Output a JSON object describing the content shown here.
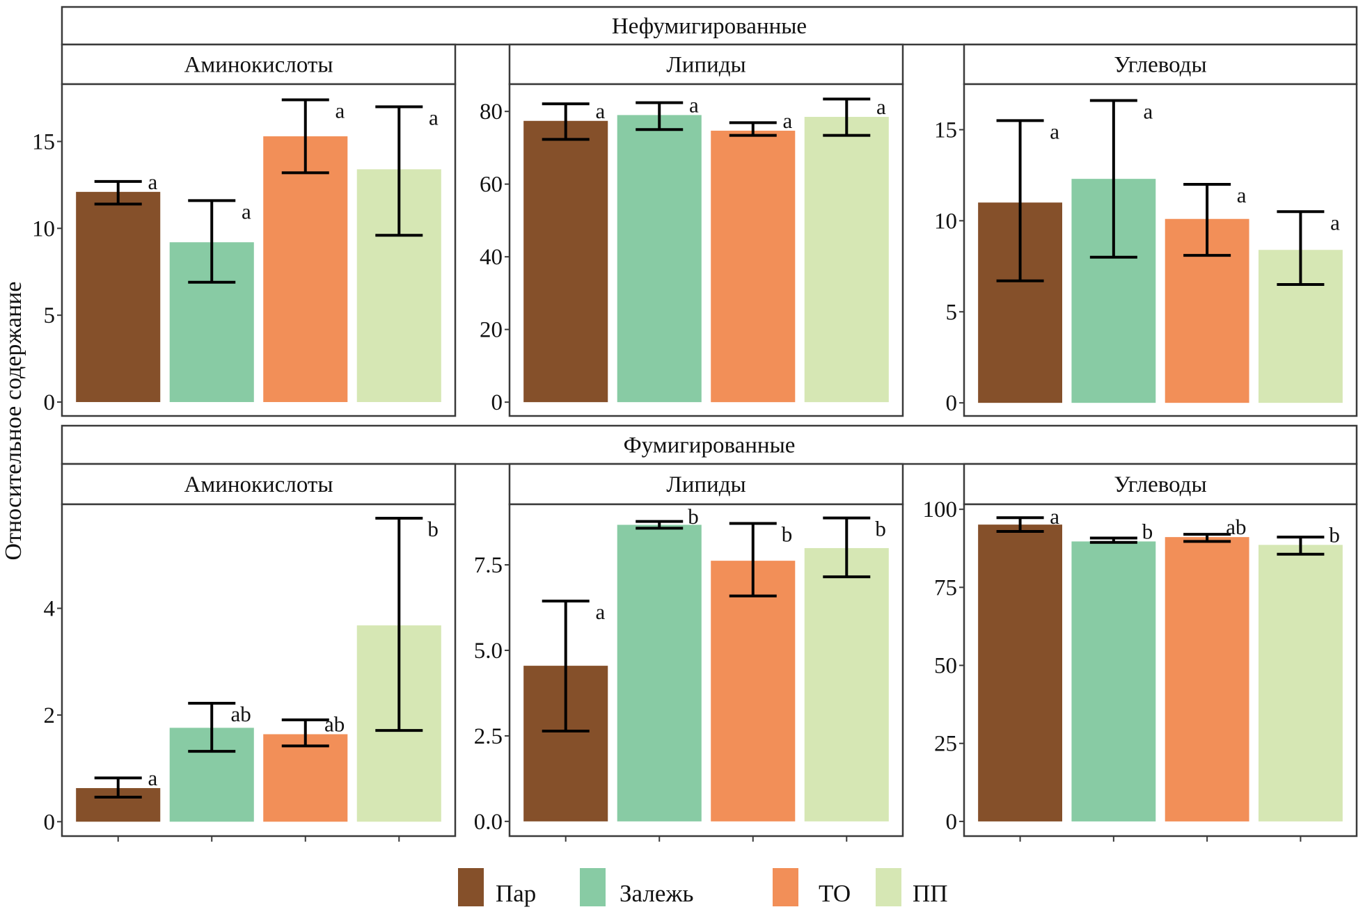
{
  "chart_data": {
    "type": "bar",
    "ylabel": "Относительное содержание",
    "xlabel": "",
    "categories": [
      "Пар",
      "Залежь",
      "ТО",
      "ПП"
    ],
    "legend": {
      "position": "bottom",
      "entries": [
        {
          "label": "Пар",
          "color": "#85502A"
        },
        {
          "label": "Залежь",
          "color": "#88CBA4"
        },
        {
          "label": "ТО",
          "color": "#F28F58"
        },
        {
          "label": "ПП",
          "color": "#D6E7B4"
        }
      ]
    },
    "rows": [
      {
        "title": "Нефумигированные",
        "panels": [
          {
            "title": "Аминокислоты",
            "ylim": [
              -0.8,
              18.3
            ],
            "yticks": [
              0,
              5,
              10,
              15
            ],
            "ytick_labels": [
              "0",
              "5",
              "10",
              "15"
            ],
            "values": [
              12.1,
              9.2,
              15.3,
              13.4
            ],
            "err_low": [
              11.4,
              6.9,
              13.2,
              9.6
            ],
            "err_high": [
              12.7,
              11.6,
              17.4,
              17.0
            ],
            "letters": [
              "a",
              "a",
              "a",
              "a"
            ]
          },
          {
            "title": "Липиды",
            "ylim": [
              -3.8,
              87.5
            ],
            "yticks": [
              0,
              20,
              40,
              60,
              80
            ],
            "ytick_labels": [
              "0",
              "20",
              "40",
              "60",
              "80"
            ],
            "values": [
              77.4,
              79.0,
              74.7,
              78.5
            ],
            "err_low": [
              72.3,
              75.0,
              73.4,
              73.4
            ],
            "err_high": [
              82.1,
              82.4,
              76.9,
              83.4
            ],
            "letters": [
              "a",
              "a",
              "a",
              "a"
            ]
          },
          {
            "title": "Углеводы",
            "ylim": [
              -0.72,
              17.5
            ],
            "yticks": [
              0,
              5,
              10,
              15
            ],
            "ytick_labels": [
              "0",
              "5",
              "10",
              "15"
            ],
            "values": [
              11.0,
              12.3,
              10.1,
              8.4
            ],
            "err_low": [
              6.7,
              8.0,
              8.1,
              6.5
            ],
            "err_high": [
              15.5,
              16.6,
              12.0,
              10.5
            ],
            "letters": [
              "a",
              "a",
              "a",
              "a"
            ]
          }
        ]
      },
      {
        "title": "Фумигированные",
        "panels": [
          {
            "title": "Аминокислоты",
            "ylim": [
              -0.27,
              5.95
            ],
            "yticks": [
              0,
              2,
              4
            ],
            "ytick_labels": [
              "0",
              "2",
              "4"
            ],
            "values": [
              0.63,
              1.76,
              1.64,
              3.68
            ],
            "err_low": [
              0.46,
              1.32,
              1.42,
              1.71
            ],
            "err_high": [
              0.82,
              2.22,
              1.91,
              5.69
            ],
            "letters": [
              "a",
              "ab",
              "ab",
              "b"
            ]
          },
          {
            "title": "Липиды",
            "ylim": [
              -0.43,
              9.27
            ],
            "yticks": [
              0,
              2.5,
              5,
              7.5
            ],
            "ytick_labels": [
              "0.0",
              "2.5",
              "5.0",
              "7.5"
            ],
            "values": [
              4.55,
              8.67,
              7.62,
              7.99
            ],
            "err_low": [
              2.64,
              8.57,
              6.59,
              7.15
            ],
            "err_high": [
              6.44,
              8.77,
              8.71,
              8.87
            ],
            "letters": [
              "a",
              "b",
              "b",
              "b"
            ]
          },
          {
            "title": "Углеводы",
            "ylim": [
              -4.7,
              101.6
            ],
            "yticks": [
              0,
              25,
              50,
              75,
              100
            ],
            "ytick_labels": [
              "0",
              "25",
              "50",
              "75",
              "100"
            ],
            "values": [
              95.1,
              89.7,
              91.1,
              88.6
            ],
            "err_low": [
              92.9,
              89.4,
              89.7,
              85.6
            ],
            "err_high": [
              97.3,
              90.8,
              92.0,
              91.1
            ],
            "letters": [
              "a",
              "b",
              "ab",
              "b"
            ]
          }
        ]
      }
    ]
  }
}
